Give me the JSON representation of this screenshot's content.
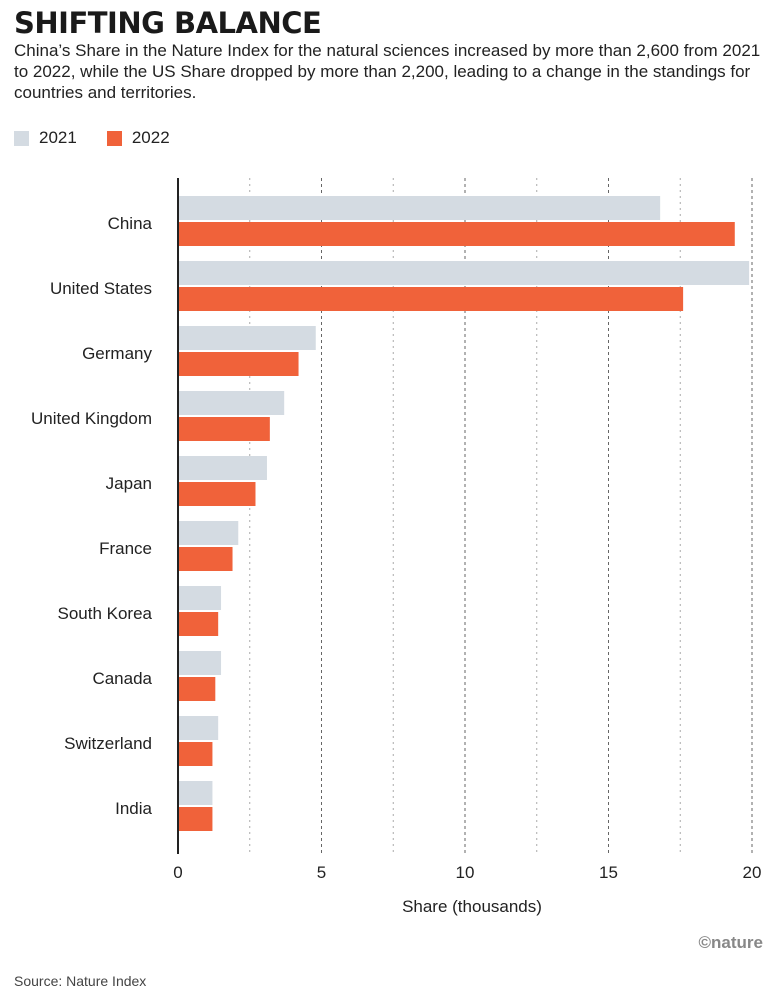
{
  "header": {
    "title": "SHIFTING BALANCE",
    "subtitle": "China’s Share in the Nature Index for the natural sciences increased by more than 2,600 from 2021 to 2022, while the US Share dropped by more than 2,200, leading to a change in the standings for countries and territories."
  },
  "footer": {
    "source": "Source: Nature Index",
    "credit": "©nature"
  },
  "colors": {
    "series_2021": "#d4dbe2",
    "series_2022": "#f0623a",
    "axis": "#222222",
    "grid": "#888888"
  },
  "chart_data": {
    "type": "bar",
    "orientation": "horizontal",
    "categories": [
      "China",
      "United States",
      "Germany",
      "United Kingdom",
      "Japan",
      "France",
      "South Korea",
      "Canada",
      "Switzerland",
      "India"
    ],
    "series": [
      {
        "name": "2021",
        "values": [
          16.8,
          19.9,
          4.8,
          3.7,
          3.1,
          2.1,
          1.5,
          1.5,
          1.4,
          1.2
        ]
      },
      {
        "name": "2022",
        "values": [
          19.4,
          17.6,
          4.2,
          3.2,
          2.7,
          1.9,
          1.4,
          1.3,
          1.2,
          1.2
        ]
      }
    ],
    "xlabel": "Share (thousands)",
    "ylabel": "",
    "xlim": [
      0,
      20
    ],
    "xticks": [
      0,
      5,
      10,
      15,
      20
    ],
    "grid": "dotted vertical",
    "legend": "top-left"
  }
}
